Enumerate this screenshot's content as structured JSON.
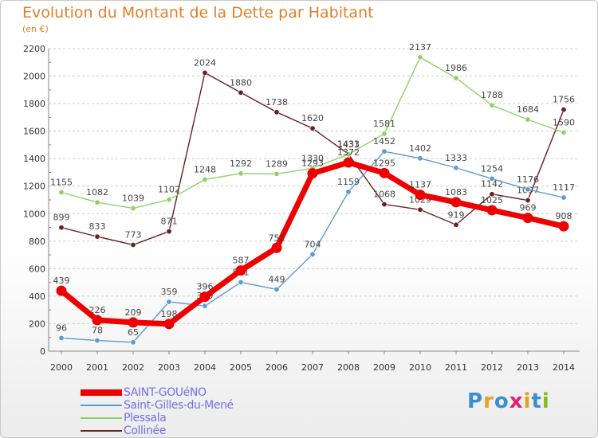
{
  "header": {
    "title": "Evolution du Montant de la Dette par Habitant",
    "subtitle": "(en €)"
  },
  "logo": {
    "text": "Proxiti",
    "colors": [
      "#3a8fd0",
      "#e8a020",
      "#3a8fd0",
      "#e02070",
      "#e8a020",
      "#3a8fd0",
      "#88bb20"
    ]
  },
  "chart_data": {
    "type": "line",
    "title": "Evolution du Montant de la Dette par Habitant",
    "subtitle": "(en €)",
    "xlabel": "",
    "ylabel": "",
    "x": [
      "2000",
      "2001",
      "2002",
      "2003",
      "2004",
      "2005",
      "2006",
      "2007",
      "2008",
      "2009",
      "2010",
      "2011",
      "2012",
      "2013",
      "2014"
    ],
    "ylim": [
      0,
      2200
    ],
    "yticks": [
      0,
      200,
      400,
      600,
      800,
      1000,
      1200,
      1400,
      1600,
      1800,
      2000,
      2200
    ],
    "grid": "horizontal dashed",
    "legend_position": "bottom-left",
    "series": [
      {
        "name": "Collinée",
        "color": "#6b1f1f",
        "values": [
          899,
          833,
          773,
          871,
          2024,
          1880,
          1738,
          1620,
          1433,
          1068,
          1029,
          919,
          1142,
          1097,
          1756
        ]
      },
      {
        "name": "Plessala",
        "color": "#8fd068",
        "values": [
          1155,
          1082,
          1039,
          1102,
          1248,
          1292,
          1289,
          1330,
          1431,
          1581,
          2137,
          1986,
          1788,
          1684,
          1590
        ]
      },
      {
        "name": "Saint-Gilles-du-Mené",
        "color": "#5b9bd0",
        "values": [
          96,
          78,
          65,
          359,
          329,
          501,
          449,
          704,
          1159,
          1452,
          1402,
          1333,
          1254,
          1176,
          1117
        ]
      },
      {
        "name": "SAINT-GOUéNO",
        "color": "#ee0000",
        "values": [
          439,
          226,
          209,
          198,
          396,
          587,
          751,
          1293,
          1372,
          1295,
          1137,
          1083,
          1025,
          969,
          908
        ]
      }
    ],
    "legend": [
      "SAINT-GOUéNO",
      "Saint-Gilles-du-Mené",
      "Plessala",
      "Collinée"
    ]
  }
}
